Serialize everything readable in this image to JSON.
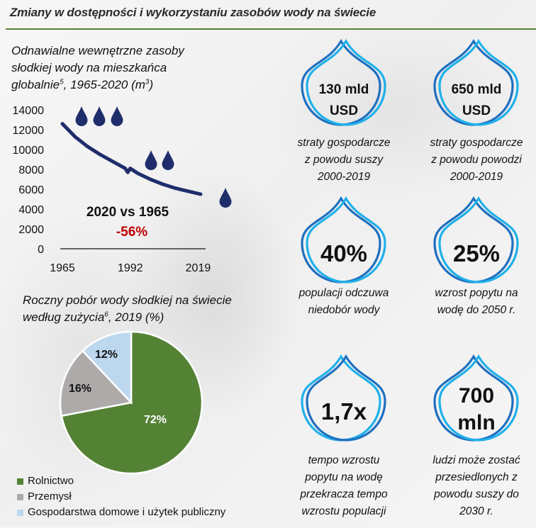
{
  "page": {
    "title": "Zmiany w dostępności i wykorzystaniu zasobów wody na świecie"
  },
  "chart_data": [
    {
      "type": "line",
      "title_lines": [
        "Odnawialne wewnętrzne zasoby",
        "słodkiej wody na mieszkańca",
        "globalnie"
      ],
      "title_superscript": "5",
      "title_suffix": ", 1965-2020 (m",
      "title_unit_superscript": "3",
      "title_end": ")",
      "xlabel": "",
      "ylabel": "",
      "x_ticks": [
        "1965",
        "1992",
        "2019"
      ],
      "y_ticks": [
        "14000",
        "12000",
        "10000",
        "8000",
        "6000",
        "4000",
        "2000",
        "0"
      ],
      "ylim": [
        0,
        14000
      ],
      "xlim": [
        1965,
        2020
      ],
      "grid": false,
      "series": [
        {
          "name": "Zasoby wody na mieszkańca",
          "color": "#1f2d6b",
          "x": [
            1965,
            1970,
            1975,
            1980,
            1985,
            1990,
            1991,
            1992,
            1995,
            2000,
            2005,
            2010,
            2015,
            2020
          ],
          "values": [
            12600,
            11300,
            10300,
            9500,
            8800,
            8100,
            7700,
            8100,
            7600,
            7000,
            6500,
            6100,
            5800,
            5500
          ]
        }
      ],
      "annotations": [
        {
          "text": "2020 vs 1965",
          "color": "#111111"
        },
        {
          "text": "-56%",
          "color": "#c00000"
        }
      ],
      "decorations": {
        "drop_groups": [
          3,
          2,
          1
        ],
        "drop_color": "#1f2d6b"
      }
    },
    {
      "type": "pie",
      "title_line1": "Roczny pobór wody słodkiej na świecie",
      "title_line2_prefix": "według zużycia",
      "title_superscript": "6",
      "title_line2_suffix": ", 2019 (%)",
      "legend_position": "bottom-left",
      "slices": [
        {
          "label": "Rolnictwo",
          "value": 72,
          "display": "72%",
          "color": "#548235",
          "label_color": "#ffffff"
        },
        {
          "label": "Przemysł",
          "value": 16,
          "display": "16%",
          "color": "#aeaaaa",
          "label_color": "#111111"
        },
        {
          "label": "Gospodarstwa domowe i użytek publiczny",
          "value": 12,
          "display": "12%",
          "color": "#bdd7ee",
          "label_color": "#111111"
        }
      ]
    }
  ],
  "stats": [
    {
      "value_lines": [
        "130 mld",
        "USD"
      ],
      "desc_lines": [
        "straty gospodarcze",
        "z powodu suszy",
        "2000-2019"
      ],
      "drop_style": "dark-left"
    },
    {
      "value_lines": [
        "650 mld",
        "USD"
      ],
      "desc_lines": [
        "straty gospodarcze",
        "z powodu powodzi",
        "2000-2019"
      ],
      "drop_style": "dark-left"
    },
    {
      "value_lines": [
        "40%"
      ],
      "desc_lines": [
        "populacji odczuwa",
        "niedobór wody"
      ],
      "drop_style": "dark-left"
    },
    {
      "value_lines": [
        "25%"
      ],
      "desc_lines": [
        "wzrost popytu na",
        "wodę do 2050 r."
      ],
      "drop_style": "dark-left"
    },
    {
      "value_lines": [
        "1,7x"
      ],
      "desc_lines": [
        "tempo wzrostu",
        "popytu na wodę",
        "przekracza tempo",
        "wzrostu populacji"
      ],
      "drop_style": "light-left"
    },
    {
      "value_lines": [
        "700",
        "mln"
      ],
      "desc_lines": [
        "ludzi może zostać",
        "przesiedlonych z",
        "powodu suszy do",
        "2030 r."
      ],
      "drop_style": "dark-left"
    }
  ],
  "colors": {
    "accent_green": "#548235",
    "drop_dark_blue": "#1f6fbf",
    "drop_light_blue": "#1fb0ea",
    "negative_red": "#c00000",
    "navy": "#1f2d6b"
  }
}
